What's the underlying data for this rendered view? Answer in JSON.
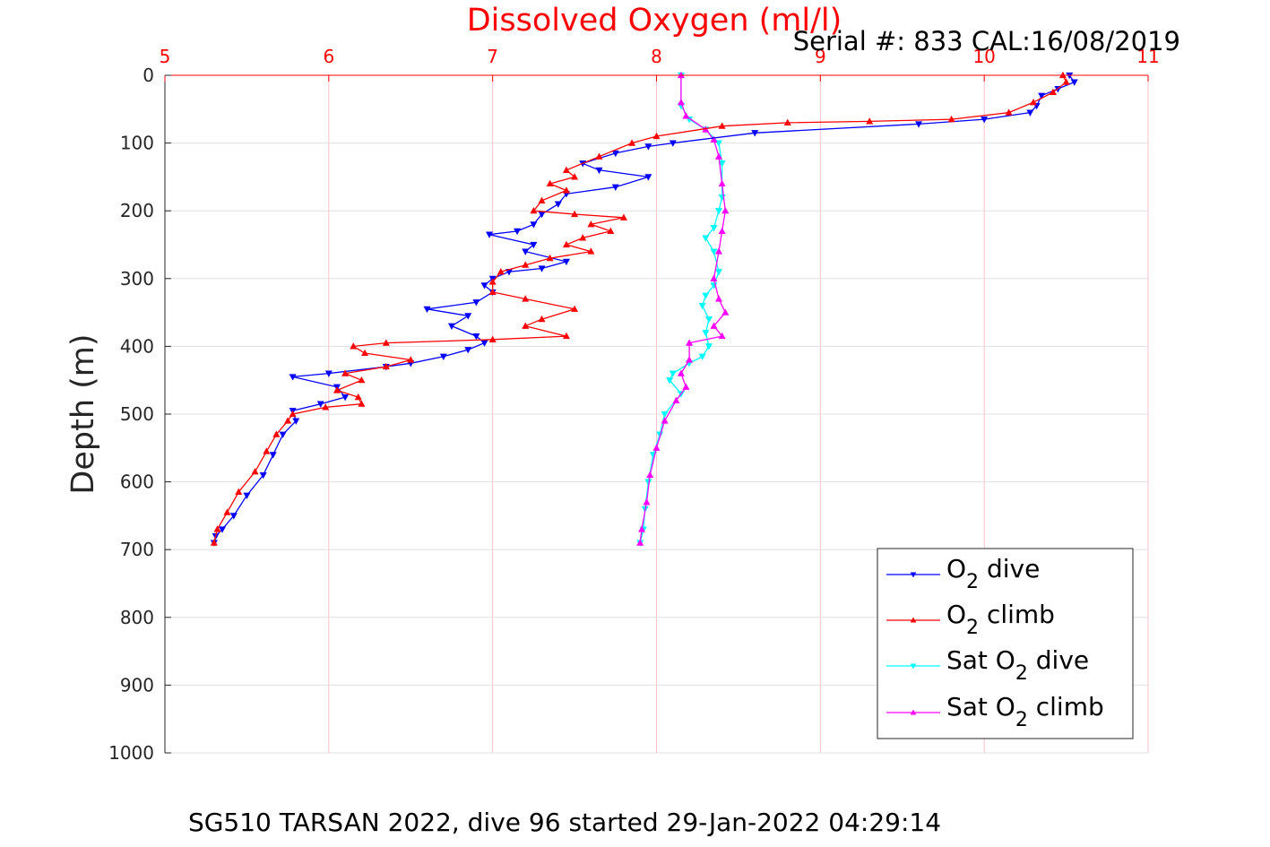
{
  "colors": {
    "dive": "#0000ff",
    "climb": "#ff0000",
    "sat_dive": "#00ffff",
    "sat_climb": "#ff00ff",
    "x_axis": "#ff0000",
    "grid_x": "#ffc0c8",
    "grid_y": "#e0e0e0"
  },
  "chart_data": {
    "type": "line",
    "title": "Dissolved Oxygen (ml/l)",
    "subtitle": "Serial #: 833  CAL:16/08/2019",
    "caption": "SG510 TARSAN 2022, dive 96 started 29-Jan-2022 04:29:14",
    "xlabel": "",
    "ylabel": "Depth (m)",
    "xlim": [
      5,
      11
    ],
    "ylim": [
      0,
      1000
    ],
    "y_reversed": true,
    "x_axis_position": "top",
    "x_ticks": [
      5,
      6,
      7,
      8,
      9,
      10,
      11
    ],
    "x_tick_labels": [
      "5",
      "6",
      "7",
      "8",
      "9",
      "10",
      "11"
    ],
    "y_ticks": [
      0,
      100,
      200,
      300,
      400,
      500,
      600,
      700,
      800,
      900,
      1000
    ],
    "y_tick_labels": [
      "0",
      "100",
      "200",
      "300",
      "400",
      "500",
      "600",
      "700",
      "800",
      "900",
      "1000"
    ],
    "grid": true,
    "legend_position": "bottom-right",
    "series": [
      {
        "name": "O2 dive",
        "label_main": "O",
        "label_sub": "2",
        "label_rest": " dive",
        "color": "#0000ff",
        "marker": "down-triangle",
        "points": [
          [
            10.52,
            0
          ],
          [
            10.55,
            10
          ],
          [
            10.45,
            20
          ],
          [
            10.35,
            30
          ],
          [
            10.32,
            45
          ],
          [
            10.28,
            55
          ],
          [
            10.0,
            65
          ],
          [
            9.6,
            72
          ],
          [
            8.6,
            85
          ],
          [
            8.1,
            100
          ],
          [
            7.95,
            105
          ],
          [
            7.75,
            115
          ],
          [
            7.55,
            130
          ],
          [
            7.65,
            140
          ],
          [
            7.95,
            150
          ],
          [
            7.75,
            165
          ],
          [
            7.45,
            175
          ],
          [
            7.4,
            190
          ],
          [
            7.3,
            205
          ],
          [
            7.25,
            220
          ],
          [
            7.15,
            230
          ],
          [
            6.98,
            235
          ],
          [
            7.25,
            250
          ],
          [
            7.2,
            260
          ],
          [
            7.45,
            275
          ],
          [
            7.3,
            285
          ],
          [
            7.1,
            290
          ],
          [
            7.0,
            300
          ],
          [
            6.95,
            310
          ],
          [
            7.0,
            320
          ],
          [
            6.9,
            335
          ],
          [
            6.6,
            345
          ],
          [
            6.85,
            355
          ],
          [
            6.75,
            370
          ],
          [
            6.9,
            385
          ],
          [
            6.95,
            395
          ],
          [
            6.85,
            405
          ],
          [
            6.7,
            415
          ],
          [
            6.5,
            425
          ],
          [
            6.35,
            430
          ],
          [
            6.0,
            440
          ],
          [
            5.78,
            445
          ],
          [
            6.05,
            460
          ],
          [
            6.1,
            475
          ],
          [
            5.95,
            485
          ],
          [
            5.78,
            495
          ],
          [
            5.8,
            510
          ],
          [
            5.72,
            530
          ],
          [
            5.66,
            560
          ],
          [
            5.6,
            590
          ],
          [
            5.5,
            620
          ],
          [
            5.42,
            650
          ],
          [
            5.35,
            670
          ],
          [
            5.31,
            680
          ],
          [
            5.3,
            690
          ]
        ]
      },
      {
        "name": "O2 climb",
        "label_main": "O",
        "label_sub": "2",
        "label_rest": " climb",
        "color": "#ff0000",
        "marker": "up-triangle",
        "points": [
          [
            10.48,
            0
          ],
          [
            10.5,
            10
          ],
          [
            10.42,
            25
          ],
          [
            10.3,
            40
          ],
          [
            10.15,
            55
          ],
          [
            9.8,
            65
          ],
          [
            9.3,
            68
          ],
          [
            8.8,
            70
          ],
          [
            8.4,
            75
          ],
          [
            8.0,
            90
          ],
          [
            7.85,
            100
          ],
          [
            7.65,
            120
          ],
          [
            7.45,
            140
          ],
          [
            7.5,
            150
          ],
          [
            7.35,
            160
          ],
          [
            7.45,
            170
          ],
          [
            7.3,
            185
          ],
          [
            7.25,
            200
          ],
          [
            7.5,
            205
          ],
          [
            7.8,
            210
          ],
          [
            7.6,
            220
          ],
          [
            7.72,
            230
          ],
          [
            7.55,
            240
          ],
          [
            7.45,
            250
          ],
          [
            7.6,
            260
          ],
          [
            7.35,
            270
          ],
          [
            7.2,
            280
          ],
          [
            7.05,
            290
          ],
          [
            7.0,
            305
          ],
          [
            7.0,
            320
          ],
          [
            7.2,
            330
          ],
          [
            7.5,
            345
          ],
          [
            7.3,
            360
          ],
          [
            7.2,
            370
          ],
          [
            7.45,
            385
          ],
          [
            7.0,
            390
          ],
          [
            6.35,
            395
          ],
          [
            6.15,
            400
          ],
          [
            6.22,
            410
          ],
          [
            6.5,
            420
          ],
          [
            6.35,
            430
          ],
          [
            6.1,
            440
          ],
          [
            6.2,
            450
          ],
          [
            6.05,
            465
          ],
          [
            6.18,
            475
          ],
          [
            6.2,
            485
          ],
          [
            5.98,
            490
          ],
          [
            5.78,
            500
          ],
          [
            5.75,
            510
          ],
          [
            5.68,
            530
          ],
          [
            5.62,
            555
          ],
          [
            5.55,
            585
          ],
          [
            5.45,
            615
          ],
          [
            5.38,
            645
          ],
          [
            5.32,
            670
          ],
          [
            5.3,
            690
          ]
        ]
      },
      {
        "name": "Sat O2 dive",
        "label_main": "Sat O",
        "label_sub": "2",
        "label_rest": " dive",
        "color": "#00ffff",
        "marker": "down-triangle",
        "points": [
          [
            8.15,
            0
          ],
          [
            8.15,
            45
          ],
          [
            8.2,
            65
          ],
          [
            8.3,
            80
          ],
          [
            8.38,
            100
          ],
          [
            8.4,
            130
          ],
          [
            8.4,
            180
          ],
          [
            8.38,
            200
          ],
          [
            8.35,
            225
          ],
          [
            8.3,
            240
          ],
          [
            8.35,
            260
          ],
          [
            8.38,
            290
          ],
          [
            8.35,
            310
          ],
          [
            8.3,
            325
          ],
          [
            8.28,
            340
          ],
          [
            8.32,
            360
          ],
          [
            8.3,
            380
          ],
          [
            8.32,
            400
          ],
          [
            8.28,
            415
          ],
          [
            8.2,
            425
          ],
          [
            8.1,
            440
          ],
          [
            8.08,
            450
          ],
          [
            8.15,
            470
          ],
          [
            8.05,
            500
          ],
          [
            8.02,
            530
          ],
          [
            7.98,
            560
          ],
          [
            7.95,
            600
          ],
          [
            7.93,
            640
          ],
          [
            7.92,
            670
          ],
          [
            7.9,
            690
          ]
        ]
      },
      {
        "name": "Sat O2 climb",
        "label_main": "Sat O",
        "label_sub": "2",
        "label_rest": " climb",
        "color": "#ff00ff",
        "marker": "up-triangle",
        "points": [
          [
            8.15,
            0
          ],
          [
            8.15,
            40
          ],
          [
            8.18,
            60
          ],
          [
            8.3,
            80
          ],
          [
            8.35,
            95
          ],
          [
            8.38,
            120
          ],
          [
            8.4,
            160
          ],
          [
            8.42,
            200
          ],
          [
            8.4,
            230
          ],
          [
            8.38,
            260
          ],
          [
            8.35,
            300
          ],
          [
            8.38,
            330
          ],
          [
            8.42,
            350
          ],
          [
            8.35,
            370
          ],
          [
            8.4,
            385
          ],
          [
            8.2,
            395
          ],
          [
            8.2,
            420
          ],
          [
            8.15,
            440
          ],
          [
            8.18,
            460
          ],
          [
            8.12,
            480
          ],
          [
            8.05,
            510
          ],
          [
            8.0,
            550
          ],
          [
            7.96,
            590
          ],
          [
            7.94,
            630
          ],
          [
            7.91,
            670
          ],
          [
            7.9,
            690
          ]
        ]
      }
    ]
  }
}
